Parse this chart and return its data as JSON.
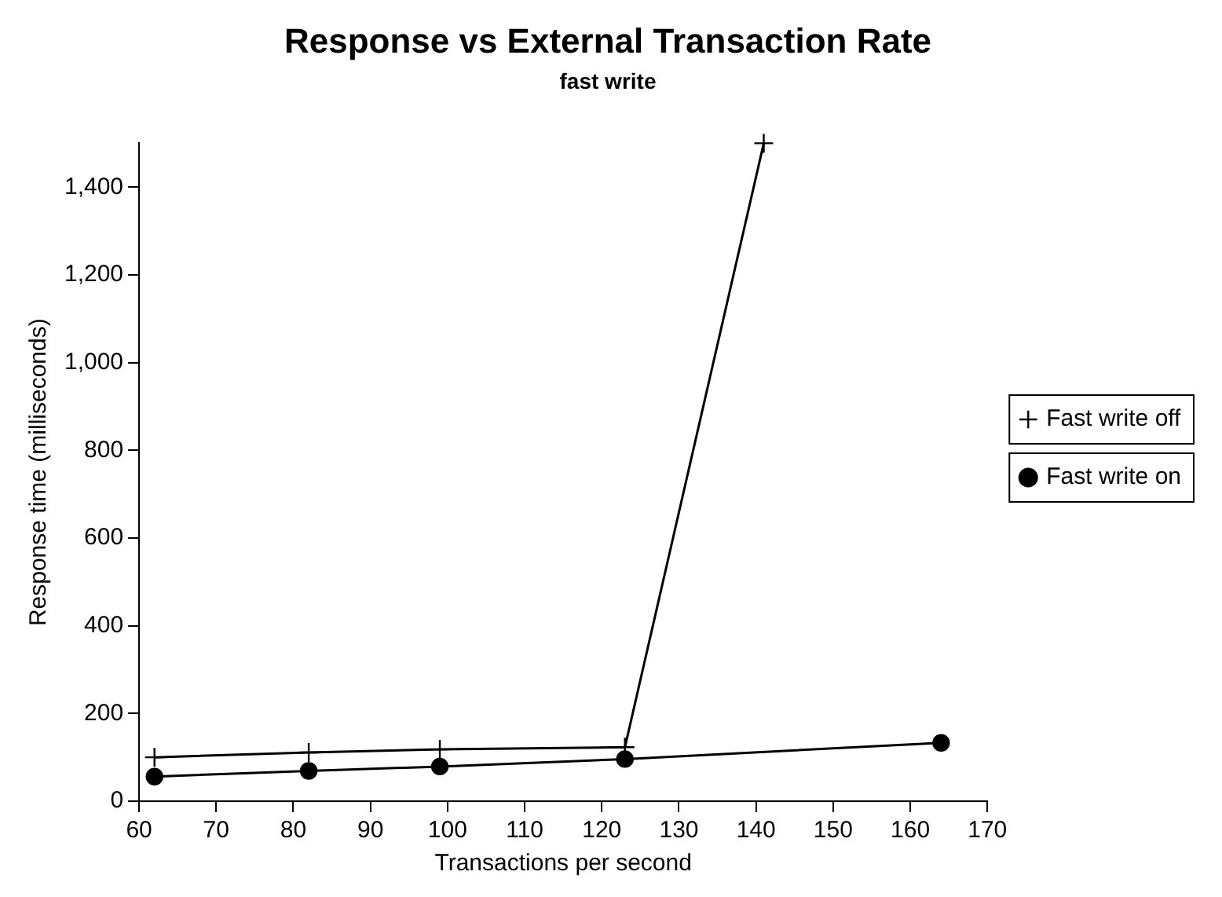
{
  "chart_data": {
    "type": "line",
    "title": "Response vs External Transaction Rate",
    "subtitle": "fast write",
    "xlabel": "Transactions per second",
    "ylabel": "Response time (milliseconds)",
    "xlim": [
      60,
      170
    ],
    "xticks": [
      60,
      70,
      80,
      90,
      100,
      110,
      120,
      130,
      140,
      150,
      160,
      170
    ],
    "ylim": [
      0,
      1500
    ],
    "yticks": [
      0,
      200,
      400,
      600,
      800,
      {
        "value": 1000,
        "label": "1,000"
      },
      {
        "value": 1200,
        "label": "1,200"
      },
      {
        "value": 1400,
        "label": "1,400"
      }
    ],
    "grid": false,
    "legend": "right",
    "line_style": "solid",
    "series": [
      {
        "name": "Fast write off",
        "color": "#000000",
        "marker": "cross",
        "x": [
          62,
          82,
          99,
          123,
          141
        ],
        "values": [
          100,
          111,
          118,
          123,
          1500
        ]
      },
      {
        "name": "Fast write on",
        "color": "#000000",
        "marker": "circle",
        "x": [
          62,
          82,
          99,
          123,
          164
        ],
        "values": [
          56,
          69,
          79,
          96,
          133
        ]
      }
    ]
  }
}
